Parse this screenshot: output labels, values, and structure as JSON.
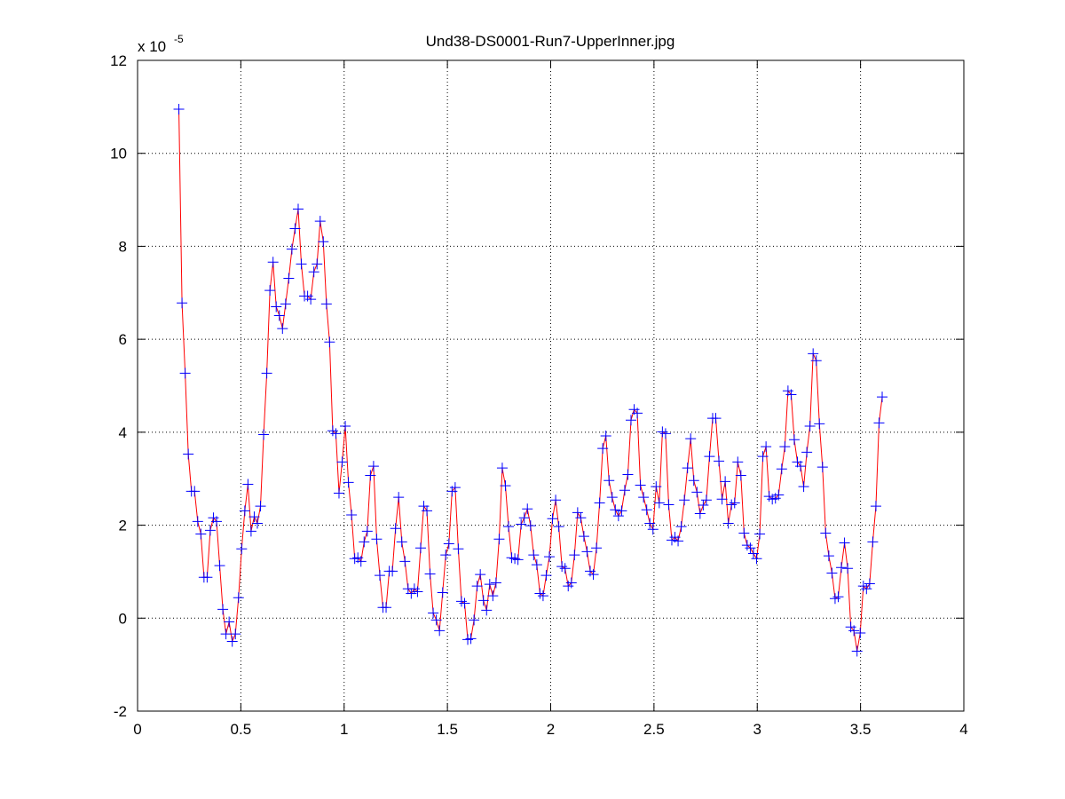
{
  "chart_data": {
    "type": "line",
    "title": "Und38-DS0001-Run7-UpperInner.jpg",
    "y_multiplier": "x 10",
    "y_exponent": "-5",
    "x": [
      0.2,
      0.2152,
      0.2304,
      0.2456,
      0.2608,
      0.276,
      0.2912,
      0.3064,
      0.3216,
      0.3368,
      0.352,
      0.3672,
      0.3824,
      0.3976,
      0.4128,
      0.428,
      0.4432,
      0.4584,
      0.4736,
      0.4888,
      0.504,
      0.5192,
      0.5344,
      0.5496,
      0.5648,
      0.58,
      0.5952,
      0.6104,
      0.6256,
      0.6408,
      0.656,
      0.6712,
      0.6864,
      0.7016,
      0.7168,
      0.732,
      0.7472,
      0.7624,
      0.7776,
      0.7928,
      0.808,
      0.8232,
      0.8384,
      0.8536,
      0.8688,
      0.884,
      0.8992,
      0.9144,
      0.9296,
      0.9448,
      0.96,
      0.9752,
      0.9904,
      1.0056,
      1.0208,
      1.036,
      1.0512,
      1.0664,
      1.0816,
      1.0968,
      1.112,
      1.1272,
      1.1424,
      1.1576,
      1.1728,
      1.188,
      1.2032,
      1.2184,
      1.2336,
      1.2488,
      1.264,
      1.2792,
      1.2944,
      1.3096,
      1.3248,
      1.34,
      1.3552,
      1.3704,
      1.3856,
      1.4008,
      1.416,
      1.4312,
      1.4464,
      1.4616,
      1.4768,
      1.492,
      1.5072,
      1.5224,
      1.5376,
      1.5528,
      1.568,
      1.5832,
      1.5984,
      1.6136,
      1.6288,
      1.644,
      1.6592,
      1.6744,
      1.6896,
      1.7048,
      1.72,
      1.7352,
      1.7504,
      1.7656,
      1.7808,
      1.796,
      1.8112,
      1.8264,
      1.8416,
      1.8568,
      1.872,
      1.8872,
      1.9024,
      1.9176,
      1.9328,
      1.948,
      1.9632,
      1.9784,
      1.9936,
      2.0088,
      2.024,
      2.0392,
      2.0544,
      2.0696,
      2.0848,
      2.1,
      2.1152,
      2.1304,
      2.1456,
      2.1608,
      2.176,
      2.1912,
      2.2064,
      2.2216,
      2.2368,
      2.252,
      2.2672,
      2.2824,
      2.2976,
      2.3128,
      2.328,
      2.3432,
      2.3584,
      2.3736,
      2.3888,
      2.404,
      2.4192,
      2.4344,
      2.4496,
      2.4648,
      2.48,
      2.4952,
      2.5104,
      2.5256,
      2.5408,
      2.556,
      2.5712,
      2.5864,
      2.6016,
      2.6168,
      2.632,
      2.6472,
      2.6624,
      2.6776,
      2.6928,
      2.708,
      2.7232,
      2.7384,
      2.7536,
      2.7688,
      2.784,
      2.7992,
      2.8144,
      2.8296,
      2.8448,
      2.86,
      2.8752,
      2.8904,
      2.9056,
      2.9208,
      2.936,
      2.9512,
      2.9664,
      2.9816,
      2.9968,
      3.012,
      3.0272,
      3.0424,
      3.0576,
      3.0728,
      3.088,
      3.1032,
      3.1184,
      3.1336,
      3.1488,
      3.164,
      3.1792,
      3.1944,
      3.2096,
      3.2248,
      3.24,
      3.2552,
      3.2704,
      3.2856,
      3.3008,
      3.316,
      3.3312,
      3.3464,
      3.3616,
      3.3768,
      3.392,
      3.4072,
      3.4224,
      3.4376,
      3.4528,
      3.468,
      3.4832,
      3.4984,
      3.5136,
      3.5288,
      3.544,
      3.5592,
      3.5744,
      3.5896,
      3.6048
    ],
    "series": [
      {
        "color": "#ff0000",
        "marker_color": "#0000ff",
        "values": [
          10.95,
          6.78,
          5.27,
          3.53,
          2.73,
          2.73,
          2.08,
          1.81,
          0.88,
          0.88,
          1.89,
          2.16,
          2.08,
          1.13,
          0.19,
          -0.34,
          -0.08,
          -0.5,
          -0.34,
          0.44,
          1.49,
          2.31,
          2.88,
          1.87,
          2.18,
          2.04,
          2.41,
          3.95,
          5.27,
          7.05,
          7.66,
          6.7,
          6.51,
          6.23,
          6.76,
          7.31,
          7.94,
          8.38,
          8.8,
          7.62,
          6.93,
          6.93,
          6.86,
          7.45,
          7.62,
          8.54,
          8.1,
          6.76,
          5.94,
          4.03,
          3.97,
          2.69,
          3.36,
          4.13,
          2.92,
          2.22,
          1.28,
          1.3,
          1.22,
          1.64,
          1.87,
          3.07,
          3.27,
          1.7,
          0.92,
          0.23,
          0.23,
          1.01,
          1.01,
          1.93,
          2.6,
          1.64,
          1.22,
          0.63,
          0.53,
          0.63,
          0.57,
          1.51,
          2.41,
          2.31,
          0.95,
          0.11,
          -0.04,
          -0.27,
          0.55,
          1.36,
          1.6,
          2.73,
          2.81,
          1.49,
          0.36,
          0.32,
          -0.46,
          -0.44,
          -0.04,
          0.69,
          0.94,
          0.38,
          0.17,
          0.73,
          0.48,
          0.76,
          1.7,
          3.23,
          2.85,
          1.97,
          1.3,
          1.28,
          1.26,
          2.02,
          2.16,
          2.35,
          1.99,
          1.36,
          1.15,
          0.53,
          0.48,
          0.92,
          1.32,
          2.14,
          2.54,
          1.97,
          1.11,
          1.07,
          0.69,
          0.76,
          1.36,
          2.27,
          2.16,
          1.76,
          1.43,
          1.01,
          0.94,
          1.51,
          2.48,
          3.65,
          3.92,
          2.96,
          2.6,
          2.33,
          2.2,
          2.31,
          2.75,
          3.09,
          4.26,
          4.49,
          4.41,
          2.86,
          2.6,
          2.33,
          2.04,
          1.91,
          2.83,
          2.48,
          4.01,
          3.97,
          2.44,
          1.68,
          1.74,
          1.66,
          1.97,
          2.54,
          3.23,
          3.86,
          2.96,
          2.71,
          2.25,
          2.43,
          2.54,
          3.48,
          4.3,
          4.3,
          3.38,
          2.56,
          2.94,
          2.04,
          2.44,
          2.48,
          3.36,
          3.07,
          1.83,
          1.57,
          1.51,
          1.39,
          1.28,
          1.81,
          3.48,
          3.69,
          2.62,
          2.56,
          2.58,
          2.65,
          3.21,
          3.69,
          4.89,
          4.81,
          3.84,
          3.36,
          3.27,
          2.83,
          3.57,
          4.13,
          5.69,
          5.54,
          4.18,
          3.25,
          1.83,
          1.34,
          0.97,
          0.42,
          0.46,
          1.09,
          1.62,
          1.07,
          -0.19,
          -0.27,
          -0.71,
          -0.32,
          0.69,
          0.63,
          0.74,
          1.64,
          2.41,
          4.2,
          4.76
        ]
      }
    ],
    "xlim": [
      0,
      4
    ],
    "xticks": [
      0,
      0.5,
      1,
      1.5,
      2,
      2.5,
      3,
      3.5,
      4
    ],
    "ylim": [
      -2,
      12
    ],
    "yticks": [
      -2,
      0,
      2,
      4,
      6,
      8,
      10,
      12
    ],
    "grid": true
  }
}
